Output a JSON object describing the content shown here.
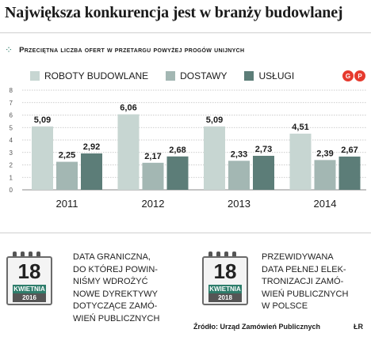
{
  "title": "Największa konkurencja jest w branży budowlanej",
  "subtitle": "Przeciętna liczba ofert w przetargu powyżej progów unijnych",
  "logo": [
    "G",
    "P"
  ],
  "colors": {
    "roboty": "#c7d6d2",
    "dostawy": "#a3b7b3",
    "uslugi": "#5c7d78",
    "accent": "#2e7d6b",
    "gridline": "#bdbdbd"
  },
  "chart_data": {
    "type": "bar",
    "categories": [
      "2011",
      "2012",
      "2013",
      "2014"
    ],
    "series": [
      {
        "name": "ROBOTY BUDOWLANE",
        "values": [
          5.09,
          6.06,
          5.09,
          4.51
        ]
      },
      {
        "name": "DOSTAWY",
        "values": [
          2.25,
          2.17,
          2.33,
          2.39
        ]
      },
      {
        "name": "USŁUGI",
        "values": [
          2.92,
          2.68,
          2.73,
          2.67
        ]
      }
    ],
    "value_labels": [
      [
        "5,09",
        "6,06",
        "5,09",
        "4,51"
      ],
      [
        "2,25",
        "2,17",
        "2,33",
        "2,39"
      ],
      [
        "2,92",
        "2,68",
        "2,73",
        "2,67"
      ]
    ],
    "ylim": [
      0,
      8
    ],
    "yticks": [
      "0",
      "1",
      "2",
      "3",
      "4",
      "5",
      "6",
      "7",
      "8"
    ],
    "grid": true,
    "legend_position": "top"
  },
  "notes": [
    {
      "day": "18",
      "month": "KWIETNIA",
      "year": "2016",
      "text": "DATA GRANICZNA,\nDO KTÓREJ POWIN-\nNIŚMY WDROŻYĆ\nNOWE DYREKTYWY\nDOTYCZĄCE ZAMÓ-\nWIEŃ PUBLICZNYCH"
    },
    {
      "day": "18",
      "month": "KWIETNIA",
      "year": "2018",
      "text": "PRZEWIDYWANA\nDATA PEŁNEJ ELEK-\nTRONIZACJI ZAMÓ-\nWIEŃ PUBLICZNYCH\nW POLSCE"
    }
  ],
  "source": "Źródło: Urząd Zamówień Publicznych",
  "initials": "ŁR"
}
